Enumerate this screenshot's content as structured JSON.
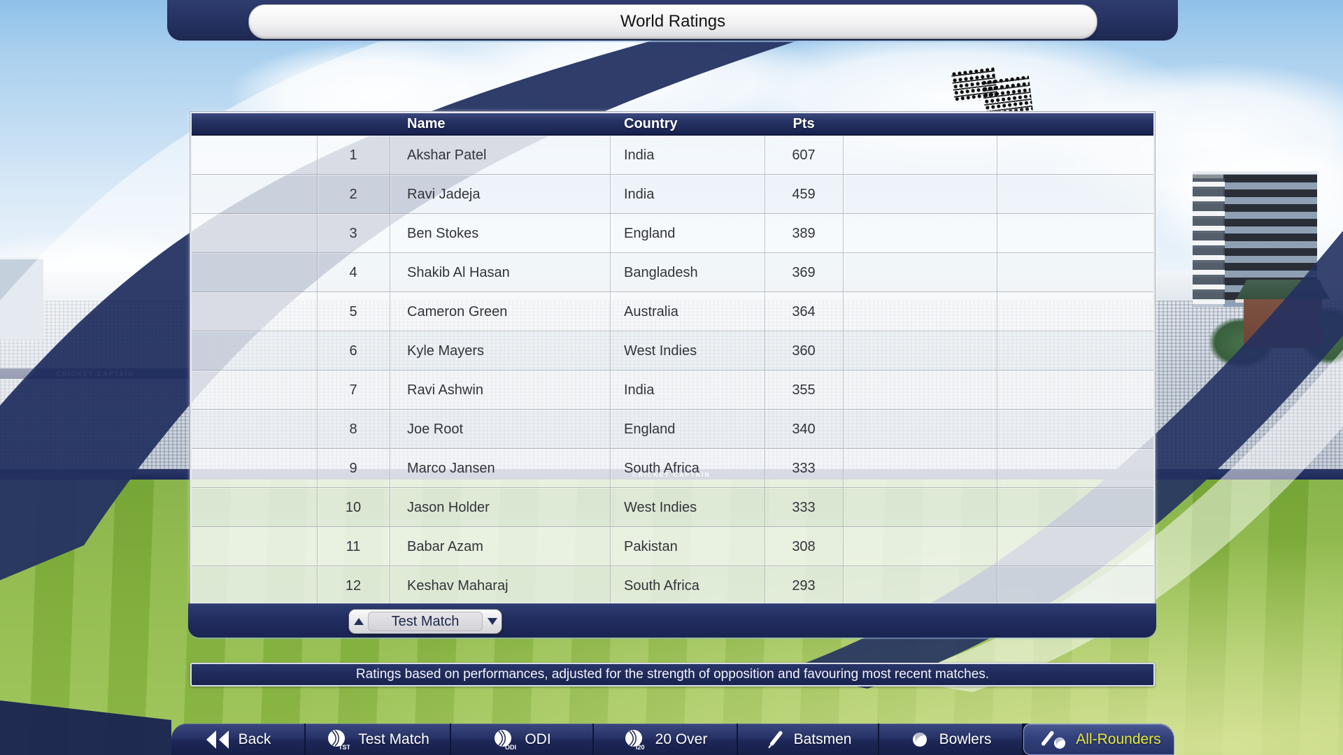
{
  "title": "World Ratings",
  "table": {
    "headers": {
      "name": "Name",
      "country": "Country",
      "pts": "Pts"
    },
    "rows": [
      {
        "rank": "1",
        "name": "Akshar Patel",
        "country": "India",
        "pts": "607"
      },
      {
        "rank": "2",
        "name": "Ravi Jadeja",
        "country": "India",
        "pts": "459"
      },
      {
        "rank": "3",
        "name": "Ben Stokes",
        "country": "England",
        "pts": "389"
      },
      {
        "rank": "4",
        "name": "Shakib Al Hasan",
        "country": "Bangladesh",
        "pts": "369"
      },
      {
        "rank": "5",
        "name": "Cameron Green",
        "country": "Australia",
        "pts": "364"
      },
      {
        "rank": "6",
        "name": "Kyle Mayers",
        "country": "West Indies",
        "pts": "360"
      },
      {
        "rank": "7",
        "name": "Ravi Ashwin",
        "country": "India",
        "pts": "355"
      },
      {
        "rank": "8",
        "name": "Joe Root",
        "country": "England",
        "pts": "340"
      },
      {
        "rank": "9",
        "name": "Marco Jansen",
        "country": "South Africa",
        "pts": "333"
      },
      {
        "rank": "10",
        "name": "Jason Holder",
        "country": "West Indies",
        "pts": "333"
      },
      {
        "rank": "11",
        "name": "Babar Azam",
        "country": "Pakistan",
        "pts": "308"
      },
      {
        "rank": "12",
        "name": "Keshav Maharaj",
        "country": "South Africa",
        "pts": "293"
      }
    ]
  },
  "dropdown": {
    "value": "Test Match"
  },
  "info_bar": {
    "text": "Ratings based on performances, adjusted for the strength of opposition and favouring most recent matches."
  },
  "nav": {
    "items": [
      {
        "id": "back",
        "label": "Back",
        "icon": "back",
        "active": false
      },
      {
        "id": "test-match",
        "label": "Test Match",
        "icon": "ball",
        "ball_text": "TST",
        "active": false
      },
      {
        "id": "odi",
        "label": "ODI",
        "icon": "ball",
        "ball_text": "ODI",
        "active": false
      },
      {
        "id": "20-over",
        "label": "20 Over",
        "icon": "ball",
        "ball_text": "I20",
        "active": false
      },
      {
        "id": "batsmen",
        "label": "Batsmen",
        "icon": "bat",
        "active": false
      },
      {
        "id": "bowlers",
        "label": "Bowlers",
        "icon": "bowlball",
        "active": false
      },
      {
        "id": "all-rounders",
        "label": "All-Rounders",
        "icon": "batball",
        "active": true
      }
    ]
  },
  "background": {
    "stand_signage": "CRICKET CAPTAIN"
  },
  "colors": {
    "navy": "#233161",
    "active_text": "#e4e93f",
    "field_green": "#8ab741"
  }
}
